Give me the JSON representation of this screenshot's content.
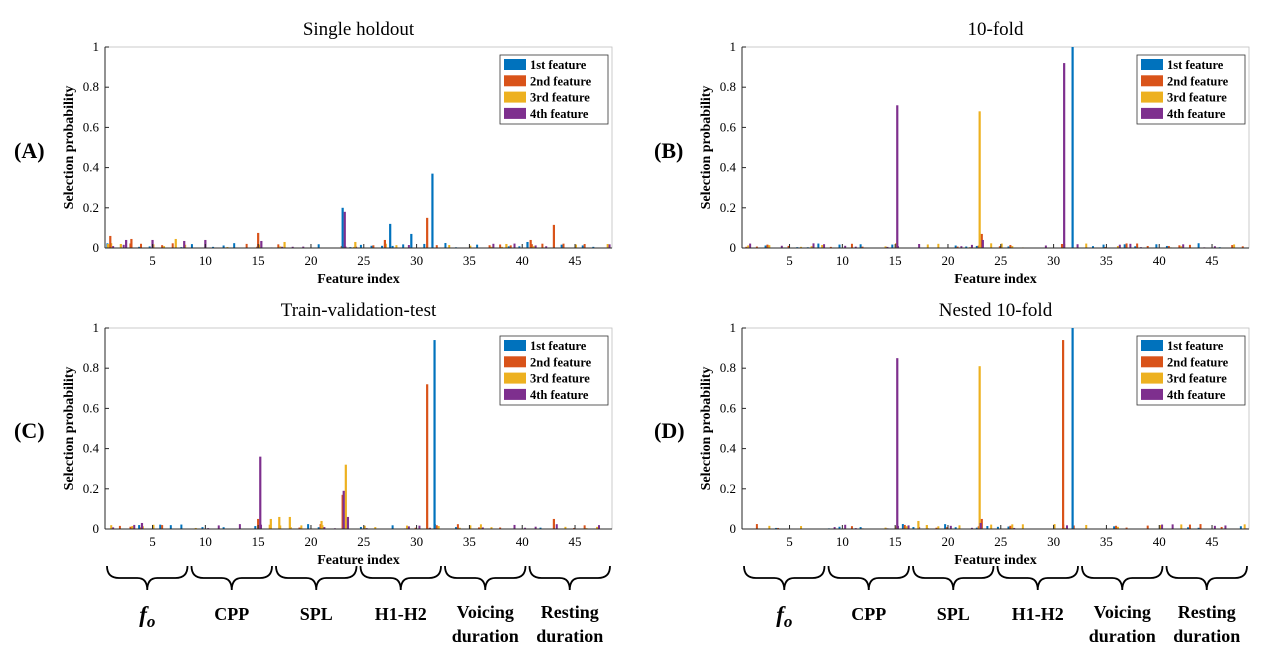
{
  "colors": {
    "s1": "#0072BD",
    "s2": "#D95319",
    "s3": "#EDB120",
    "s4": "#7E2F8E",
    "axis": "#262626",
    "frame": "#bfbfbf",
    "background": "#ffffff"
  },
  "legend_entries": [
    "1st feature",
    "2nd feature",
    "3rd feature",
    "4th feature"
  ],
  "groups": {
    "fo_letter": "f",
    "fo_sub": "o",
    "labels": [
      "CPP",
      "SPL",
      "H1-H2"
    ],
    "voicing": [
      "Voicing",
      "duration"
    ],
    "resting": [
      "Resting",
      "duration"
    ],
    "ranges": [
      [
        1,
        8
      ],
      [
        9,
        16
      ],
      [
        17,
        24
      ],
      [
        25,
        32
      ],
      [
        33,
        40
      ],
      [
        41,
        48
      ]
    ]
  },
  "chart_data": [
    {
      "panel": "(A)",
      "type": "bar",
      "title": "Single holdout",
      "xlabel": "Feature index",
      "ylabel": "Selection probability",
      "xlim": [
        0.5,
        48.5
      ],
      "ylim": [
        0,
        1
      ],
      "xticks": [
        5,
        10,
        15,
        20,
        25,
        30,
        35,
        40,
        45
      ],
      "yticks": [
        0,
        0.2,
        0.4,
        0.6,
        0.8,
        1
      ],
      "ytick_labels": [
        "0",
        "0.2",
        "0.4",
        "0.6",
        "0.8",
        "1"
      ],
      "legend": "top-right",
      "series": [
        {
          "name": "1st feature",
          "values": [
            [
              23,
              0.2
            ],
            [
              27.5,
              0.12
            ],
            [
              29.5,
              0.07
            ],
            [
              31.5,
              0.37
            ],
            [
              40.5,
              0.03
            ]
          ]
        },
        {
          "name": "2nd feature",
          "values": [
            [
              1,
              0.06
            ],
            [
              3,
              0.045
            ],
            [
              15,
              0.075
            ],
            [
              27,
              0.04
            ],
            [
              31,
              0.15
            ],
            [
              43,
              0.115
            ],
            [
              40.8,
              0.04
            ]
          ]
        },
        {
          "name": "3rd feature",
          "values": [
            [
              0.8,
              0.02
            ],
            [
              2,
              0.02
            ],
            [
              7.2,
              0.045
            ],
            [
              17.5,
              0.03
            ],
            [
              24.2,
              0.03
            ],
            [
              38.5,
              0.02
            ]
          ]
        },
        {
          "name": "4th feature",
          "values": [
            [
              2.5,
              0.04
            ],
            [
              5,
              0.04
            ],
            [
              8,
              0.035
            ],
            [
              23.2,
              0.18
            ],
            [
              10,
              0.04
            ],
            [
              15.3,
              0.035
            ]
          ]
        }
      ],
      "low_noise_seed": 3
    },
    {
      "panel": "(B)",
      "type": "bar",
      "title": "10-fold",
      "xlabel": "Feature index",
      "ylabel": "Selection probability",
      "xlim": [
        0.5,
        48.5
      ],
      "ylim": [
        0,
        1
      ],
      "xticks": [
        5,
        10,
        15,
        20,
        25,
        30,
        35,
        40,
        45
      ],
      "yticks": [
        0,
        0.2,
        0.4,
        0.6,
        0.8,
        1
      ],
      "ytick_labels": [
        "0",
        "0.2",
        "0.4",
        "0.6",
        "0.8",
        "1"
      ],
      "legend": "top-right",
      "series": [
        {
          "name": "1st feature",
          "values": [
            [
              31.8,
              1.0
            ]
          ]
        },
        {
          "name": "2nd feature",
          "values": [
            [
              23.2,
              0.07
            ],
            [
              30.8,
              0.02
            ]
          ]
        },
        {
          "name": "3rd feature",
          "values": [
            [
              23,
              0.68
            ],
            [
              31,
              0.02
            ]
          ]
        },
        {
          "name": "4th feature",
          "values": [
            [
              15.2,
              0.71
            ],
            [
              31,
              0.92
            ],
            [
              23.3,
              0.04
            ]
          ]
        }
      ],
      "low_noise_seed": 7
    },
    {
      "panel": "(C)",
      "type": "bar",
      "title": "Train-validation-test",
      "xlabel": "Feature index",
      "ylabel": "Selection probability",
      "xlim": [
        0.5,
        48.5
      ],
      "ylim": [
        0,
        1
      ],
      "xticks": [
        5,
        10,
        15,
        20,
        25,
        30,
        35,
        40,
        45
      ],
      "yticks": [
        0,
        0.2,
        0.4,
        0.6,
        0.8,
        1
      ],
      "ytick_labels": [
        "0",
        "0.2",
        "0.4",
        "0.6",
        "0.8",
        "1"
      ],
      "legend": "top-right",
      "series": [
        {
          "name": "1st feature",
          "values": [
            [
              31.7,
              0.94
            ]
          ]
        },
        {
          "name": "2nd feature",
          "values": [
            [
              31,
              0.72
            ],
            [
              23,
              0.17
            ],
            [
              15,
              0.05
            ],
            [
              43,
              0.05
            ]
          ]
        },
        {
          "name": "3rd feature",
          "values": [
            [
              23.3,
              0.32
            ],
            [
              17,
              0.06
            ],
            [
              18,
              0.06
            ],
            [
              16.2,
              0.05
            ],
            [
              21,
              0.04
            ]
          ]
        },
        {
          "name": "4th feature",
          "values": [
            [
              15.2,
              0.36
            ],
            [
              23.1,
              0.19
            ],
            [
              4,
              0.03
            ],
            [
              23.5,
              0.06
            ]
          ]
        }
      ],
      "low_noise_seed": 11
    },
    {
      "panel": "(D)",
      "type": "bar",
      "title": "Nested 10-fold",
      "xlabel": "Feature index",
      "ylabel": "Selection probability",
      "xlim": [
        0.5,
        48.5
      ],
      "ylim": [
        0,
        1
      ],
      "xticks": [
        5,
        10,
        15,
        20,
        25,
        30,
        35,
        40,
        45
      ],
      "yticks": [
        0,
        0.2,
        0.4,
        0.6,
        0.8,
        1
      ],
      "ytick_labels": [
        "0",
        "0.2",
        "0.4",
        "0.6",
        "0.8",
        "1"
      ],
      "legend": "top-right",
      "series": [
        {
          "name": "1st feature",
          "values": [
            [
              31.8,
              1.0
            ]
          ]
        },
        {
          "name": "2nd feature",
          "values": [
            [
              30.9,
              0.94
            ],
            [
              23.2,
              0.05
            ]
          ]
        },
        {
          "name": "3rd feature",
          "values": [
            [
              23,
              0.81
            ],
            [
              17.2,
              0.04
            ],
            [
              18,
              0.02
            ]
          ]
        },
        {
          "name": "4th feature",
          "values": [
            [
              15.2,
              0.85
            ],
            [
              23.1,
              0.03
            ]
          ]
        }
      ],
      "low_noise_seed": 5
    }
  ]
}
